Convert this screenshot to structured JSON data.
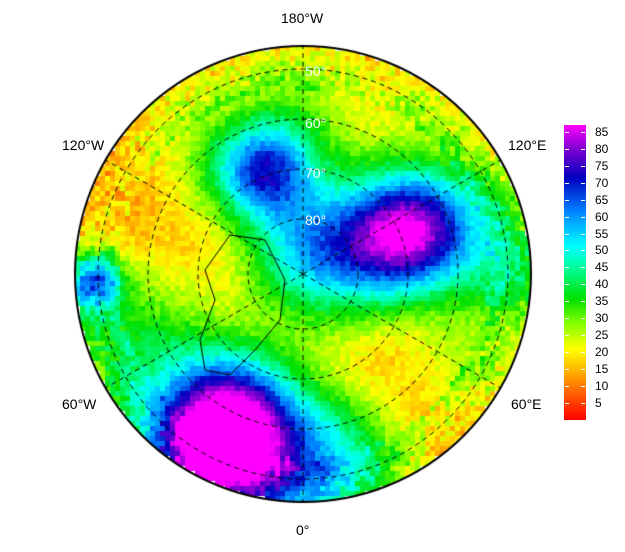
{
  "longitude_labels": {
    "top": "180°W",
    "upper_left": "120°W",
    "upper_right": "120°E",
    "lower_left": "60°W",
    "lower_right": "60°E",
    "bottom": "0°"
  },
  "latitude_labels": [
    "50°",
    "60°",
    "70°",
    "80°"
  ],
  "colorbar": {
    "ticks": [
      "85",
      "80",
      "75",
      "70",
      "65",
      "60",
      "55",
      "50",
      "45",
      "40",
      "35",
      "30",
      "25",
      "20",
      "15",
      "10",
      "5"
    ],
    "min": 0,
    "max": 87
  },
  "colors": {
    "low": "#ff0000",
    "mid": "#00ff00",
    "high": "#ff00ff"
  }
}
